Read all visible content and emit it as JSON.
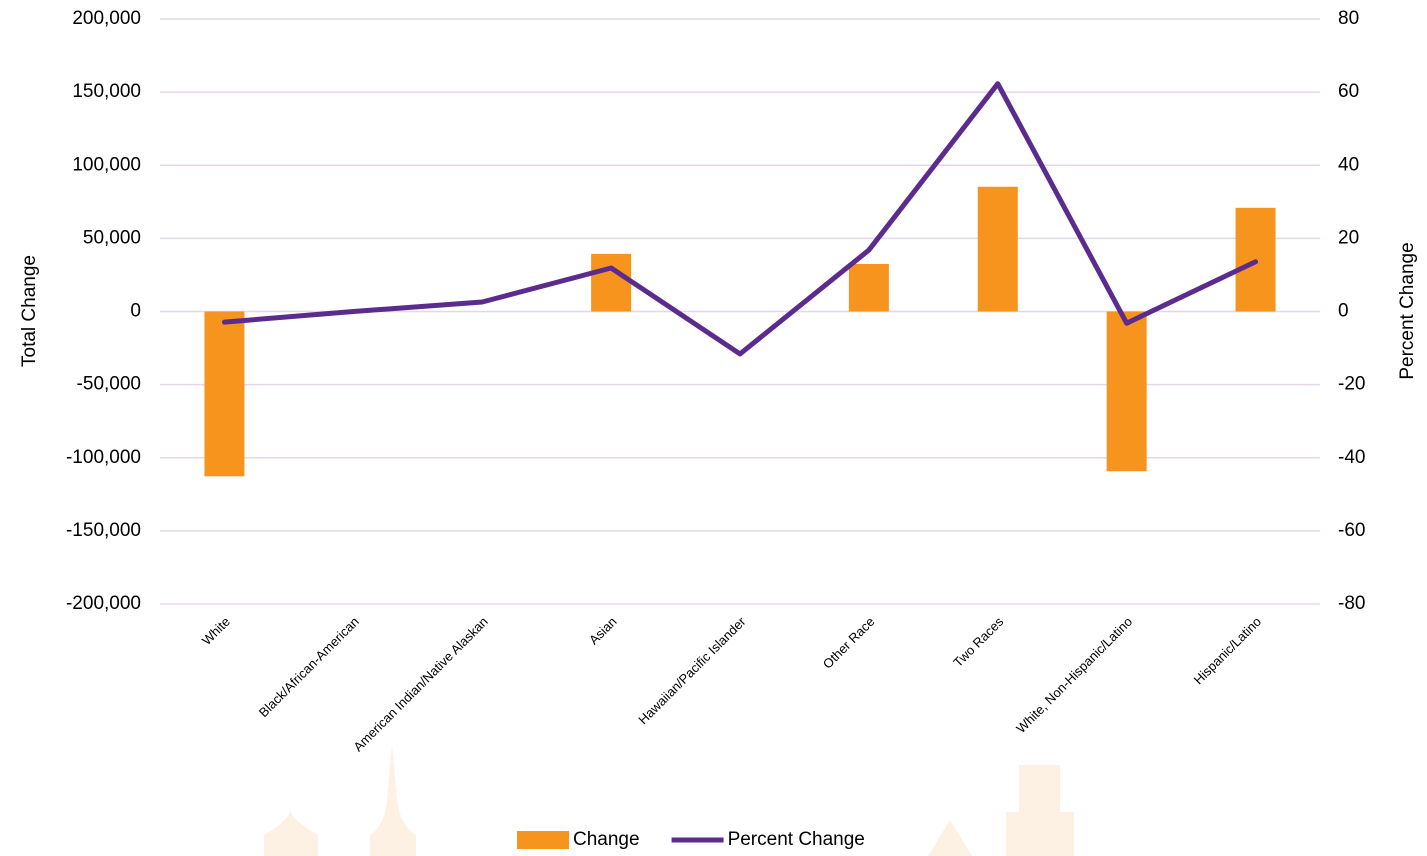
{
  "chart_data": {
    "type": "bar_line",
    "categories": [
      "White",
      "Black/African-American",
      "American Indian/Native Alaskan",
      "Asian",
      "Hawaiian/Pacific Islander",
      "Other Race",
      "Two Races",
      "White, Non-Hispanic/Latino",
      "Hispanic/Latino"
    ],
    "series": [
      {
        "name": "Change",
        "type": "bar",
        "color": "#f7941d",
        "values": [
          -112700,
          0,
          0,
          39400,
          0,
          32500,
          85300,
          -109200,
          70900
        ]
      },
      {
        "name": "Percent Change",
        "type": "line",
        "axis": "y2",
        "color": "#5b2c8e",
        "values": [
          -2.9,
          0,
          2.6,
          11.9,
          -11.6,
          16.8,
          62.3,
          -3.2,
          13.6
        ]
      }
    ],
    "ylabel": "Total  Change",
    "y2label": "Percent Change",
    "ylim": [
      -200000,
      200000
    ],
    "yticks": [
      {
        "value": -200000,
        "label": "-200,000"
      },
      {
        "value": -150000,
        "label": "-150,000"
      },
      {
        "value": -100000,
        "label": "-100,000"
      },
      {
        "value": -50000,
        "label": "-50,000"
      },
      0,
      {
        "value": 50000,
        "label": "50,000"
      },
      {
        "value": 100000,
        "label": "100,000"
      },
      {
        "value": 150000,
        "label": "150,000"
      },
      {
        "value": 200000,
        "label": "200,000"
      }
    ],
    "y2lim": [
      -80,
      80
    ],
    "y2ticks": [
      -80,
      -60,
      -40,
      -20,
      0,
      20,
      40,
      60,
      80
    ],
    "grid": true,
    "legend": "bottom"
  }
}
